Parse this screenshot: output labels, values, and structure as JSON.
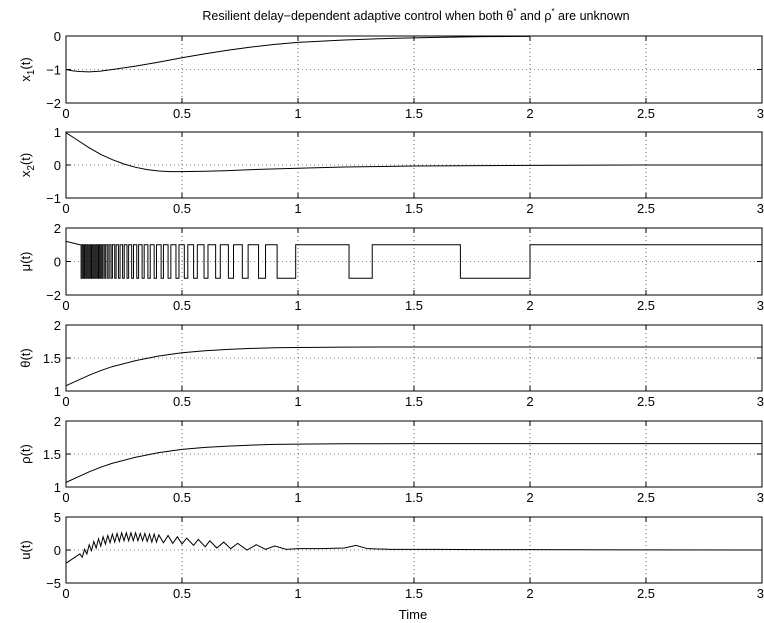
{
  "figure": {
    "title": "Resilient delay−dependent adaptive control when both θ* and ρ* are unknown",
    "title_parts": {
      "prefix": "Resilient delay−dependent adaptive control when both ",
      "theta": "θ",
      "and": " and ",
      "rho": "ρ",
      "star": "*",
      "suffix": " are unknown"
    },
    "xlabel": "Time"
  },
  "chart_data": [
    {
      "type": "line",
      "ylabel": "x1(t)",
      "ylabel_parts": {
        "base": "x",
        "sub": "1",
        "tail": "(t)"
      },
      "xlim": [
        0,
        3
      ],
      "ylim": [
        -2,
        0
      ],
      "xticks": [
        "0",
        "0.5",
        "1",
        "1.5",
        "2",
        "2.5",
        "3"
      ],
      "yticks": [
        "0",
        "−1",
        "−2"
      ],
      "ytick_values": [
        0,
        -1,
        -2
      ],
      "grid": "dotted",
      "series": [
        {
          "x": [
            0,
            0.03,
            0.06,
            0.1,
            0.15,
            0.2,
            0.3,
            0.4,
            0.5,
            0.6,
            0.7,
            0.8,
            0.9,
            1.0,
            1.2,
            1.4,
            1.6,
            1.8,
            2.0
          ],
          "y": [
            -1.0,
            -1.04,
            -1.06,
            -1.07,
            -1.05,
            -1.0,
            -0.9,
            -0.78,
            -0.65,
            -0.53,
            -0.42,
            -0.33,
            -0.25,
            -0.19,
            -0.12,
            -0.07,
            -0.04,
            -0.02,
            -0.01
          ]
        }
      ]
    },
    {
      "type": "line",
      "ylabel": "x2(t)",
      "ylabel_parts": {
        "base": "x",
        "sub": "2",
        "tail": "(t)"
      },
      "xlim": [
        0,
        3
      ],
      "ylim": [
        -1,
        1
      ],
      "xticks": [
        "0",
        "0.5",
        "1",
        "1.5",
        "2",
        "2.5",
        "3"
      ],
      "yticks": [
        "1",
        "0",
        "−1"
      ],
      "ytick_values": [
        1,
        0,
        -1
      ],
      "grid": "dotted",
      "series": [
        {
          "x": [
            0,
            0.05,
            0.1,
            0.15,
            0.2,
            0.25,
            0.3,
            0.35,
            0.4,
            0.45,
            0.5,
            0.6,
            0.7,
            0.8,
            1.0,
            1.2,
            1.5,
            2.0,
            2.5,
            3.0
          ],
          "y": [
            0.98,
            0.75,
            0.52,
            0.32,
            0.16,
            0.03,
            -0.07,
            -0.14,
            -0.18,
            -0.2,
            -0.2,
            -0.19,
            -0.17,
            -0.14,
            -0.1,
            -0.06,
            -0.03,
            -0.01,
            0.0,
            0.0
          ]
        }
      ]
    },
    {
      "type": "line",
      "ylabel": "μ(t)",
      "xlim": [
        0,
        3
      ],
      "ylim": [
        -2,
        2
      ],
      "xticks": [
        "0",
        "0.5",
        "1",
        "1.5",
        "2",
        "2.5",
        "3"
      ],
      "yticks": [
        "2",
        "0",
        "−2"
      ],
      "ytick_values": [
        2,
        0,
        -2
      ],
      "grid": "dotted",
      "start": {
        "x": [
          0,
          0.06
        ],
        "y": [
          1.2,
          1.0
        ]
      },
      "high": 1,
      "low": -1,
      "low_intervals": [
        [
          0.065,
          0.07
        ],
        [
          0.075,
          0.08
        ],
        [
          0.085,
          0.09
        ],
        [
          0.095,
          0.1
        ],
        [
          0.105,
          0.11
        ],
        [
          0.115,
          0.12
        ],
        [
          0.125,
          0.13
        ],
        [
          0.135,
          0.14
        ],
        [
          0.145,
          0.15
        ],
        [
          0.155,
          0.16
        ],
        [
          0.167,
          0.172
        ],
        [
          0.18,
          0.186
        ],
        [
          0.194,
          0.2
        ],
        [
          0.21,
          0.216
        ],
        [
          0.226,
          0.233
        ],
        [
          0.244,
          0.251
        ],
        [
          0.263,
          0.27
        ],
        [
          0.283,
          0.291
        ],
        [
          0.305,
          0.313
        ],
        [
          0.328,
          0.337
        ],
        [
          0.353,
          0.363
        ],
        [
          0.38,
          0.39
        ],
        [
          0.41,
          0.42
        ],
        [
          0.44,
          0.452
        ],
        [
          0.474,
          0.487
        ],
        [
          0.51,
          0.525
        ],
        [
          0.55,
          0.566
        ],
        [
          0.595,
          0.612
        ],
        [
          0.645,
          0.665
        ],
        [
          0.7,
          0.722
        ],
        [
          0.76,
          0.785
        ],
        [
          0.83,
          0.86
        ],
        [
          0.91,
          0.99
        ],
        [
          1.22,
          1.32
        ],
        [
          1.7,
          2.0
        ]
      ]
    },
    {
      "type": "line",
      "ylabel": "θ(t)",
      "xlim": [
        0,
        3
      ],
      "ylim": [
        1,
        2
      ],
      "xticks": [
        "0",
        "0.5",
        "1",
        "1.5",
        "2",
        "2.5",
        "3"
      ],
      "yticks": [
        "2",
        "1.5",
        "1"
      ],
      "ytick_values": [
        2,
        1.5,
        1
      ],
      "grid": "dotted",
      "series": [
        {
          "x": [
            0,
            0.05,
            0.1,
            0.15,
            0.2,
            0.3,
            0.4,
            0.5,
            0.6,
            0.7,
            0.8,
            0.9,
            1.0,
            1.2,
            1.5,
            2.0,
            2.5,
            3.0
          ],
          "y": [
            1.08,
            1.16,
            1.24,
            1.31,
            1.37,
            1.46,
            1.53,
            1.58,
            1.61,
            1.63,
            1.645,
            1.655,
            1.66,
            1.665,
            1.667,
            1.667,
            1.667,
            1.667
          ]
        }
      ]
    },
    {
      "type": "line",
      "ylabel": "ρ(t)",
      "xlim": [
        0,
        3
      ],
      "ylim": [
        1,
        2
      ],
      "xticks": [
        "0",
        "0.5",
        "1",
        "1.5",
        "2",
        "2.5",
        "3"
      ],
      "yticks": [
        "2",
        "1.5",
        "1"
      ],
      "ytick_values": [
        2,
        1.5,
        1
      ],
      "grid": "dotted",
      "series": [
        {
          "x": [
            0,
            0.05,
            0.1,
            0.15,
            0.2,
            0.3,
            0.4,
            0.5,
            0.6,
            0.7,
            0.8,
            0.9,
            1.0,
            1.2,
            1.5,
            2.0,
            2.5,
            3.0
          ],
          "y": [
            1.07,
            1.15,
            1.23,
            1.3,
            1.36,
            1.45,
            1.52,
            1.57,
            1.6,
            1.62,
            1.635,
            1.645,
            1.65,
            1.655,
            1.657,
            1.657,
            1.657,
            1.657
          ]
        }
      ]
    },
    {
      "type": "line",
      "ylabel": "u(t)",
      "xlim": [
        0,
        3
      ],
      "ylim": [
        -5,
        5
      ],
      "xticks": [
        "0",
        "0.5",
        "1",
        "1.5",
        "2",
        "2.5",
        "3"
      ],
      "yticks": [
        "5",
        "0",
        "−5"
      ],
      "ytick_values": [
        5,
        0,
        -5
      ],
      "grid": "dotted",
      "series": [
        {
          "x": [
            0,
            0.06,
            0.07,
            0.08,
            0.09,
            0.1,
            0.11,
            0.12,
            0.13,
            0.14,
            0.15,
            0.16,
            0.17,
            0.18,
            0.19,
            0.2,
            0.21,
            0.22,
            0.23,
            0.24,
            0.25,
            0.26,
            0.27,
            0.28,
            0.29,
            0.3,
            0.31,
            0.32,
            0.33,
            0.34,
            0.35,
            0.36,
            0.37,
            0.38,
            0.39,
            0.4,
            0.42,
            0.44,
            0.46,
            0.48,
            0.5,
            0.52,
            0.55,
            0.57,
            0.6,
            0.62,
            0.65,
            0.68,
            0.71,
            0.74,
            0.78,
            0.82,
            0.86,
            0.9,
            0.95,
            1.0,
            1.1,
            1.2,
            1.25,
            1.3,
            1.4,
            1.6,
            1.8,
            2.0,
            2.5,
            3.0
          ],
          "y": [
            -2.0,
            -0.6,
            -1.1,
            0.1,
            -0.6,
            0.8,
            -0.1,
            1.3,
            0.3,
            1.7,
            0.6,
            2.0,
            0.9,
            2.2,
            1.1,
            2.4,
            1.2,
            2.5,
            1.3,
            2.6,
            1.4,
            2.6,
            1.4,
            2.6,
            1.4,
            2.6,
            1.4,
            2.5,
            1.4,
            2.5,
            1.3,
            2.4,
            1.2,
            2.4,
            1.2,
            2.3,
            1.1,
            2.2,
            1.0,
            2.0,
            0.9,
            1.8,
            0.7,
            1.6,
            0.5,
            1.4,
            0.3,
            1.2,
            0.2,
            1.0,
            0.0,
            0.8,
            0.1,
            0.6,
            0.1,
            0.2,
            0.2,
            0.3,
            0.7,
            0.2,
            0.1,
            0.1,
            0.05,
            0.05,
            0.02,
            0.0
          ]
        }
      ]
    }
  ]
}
